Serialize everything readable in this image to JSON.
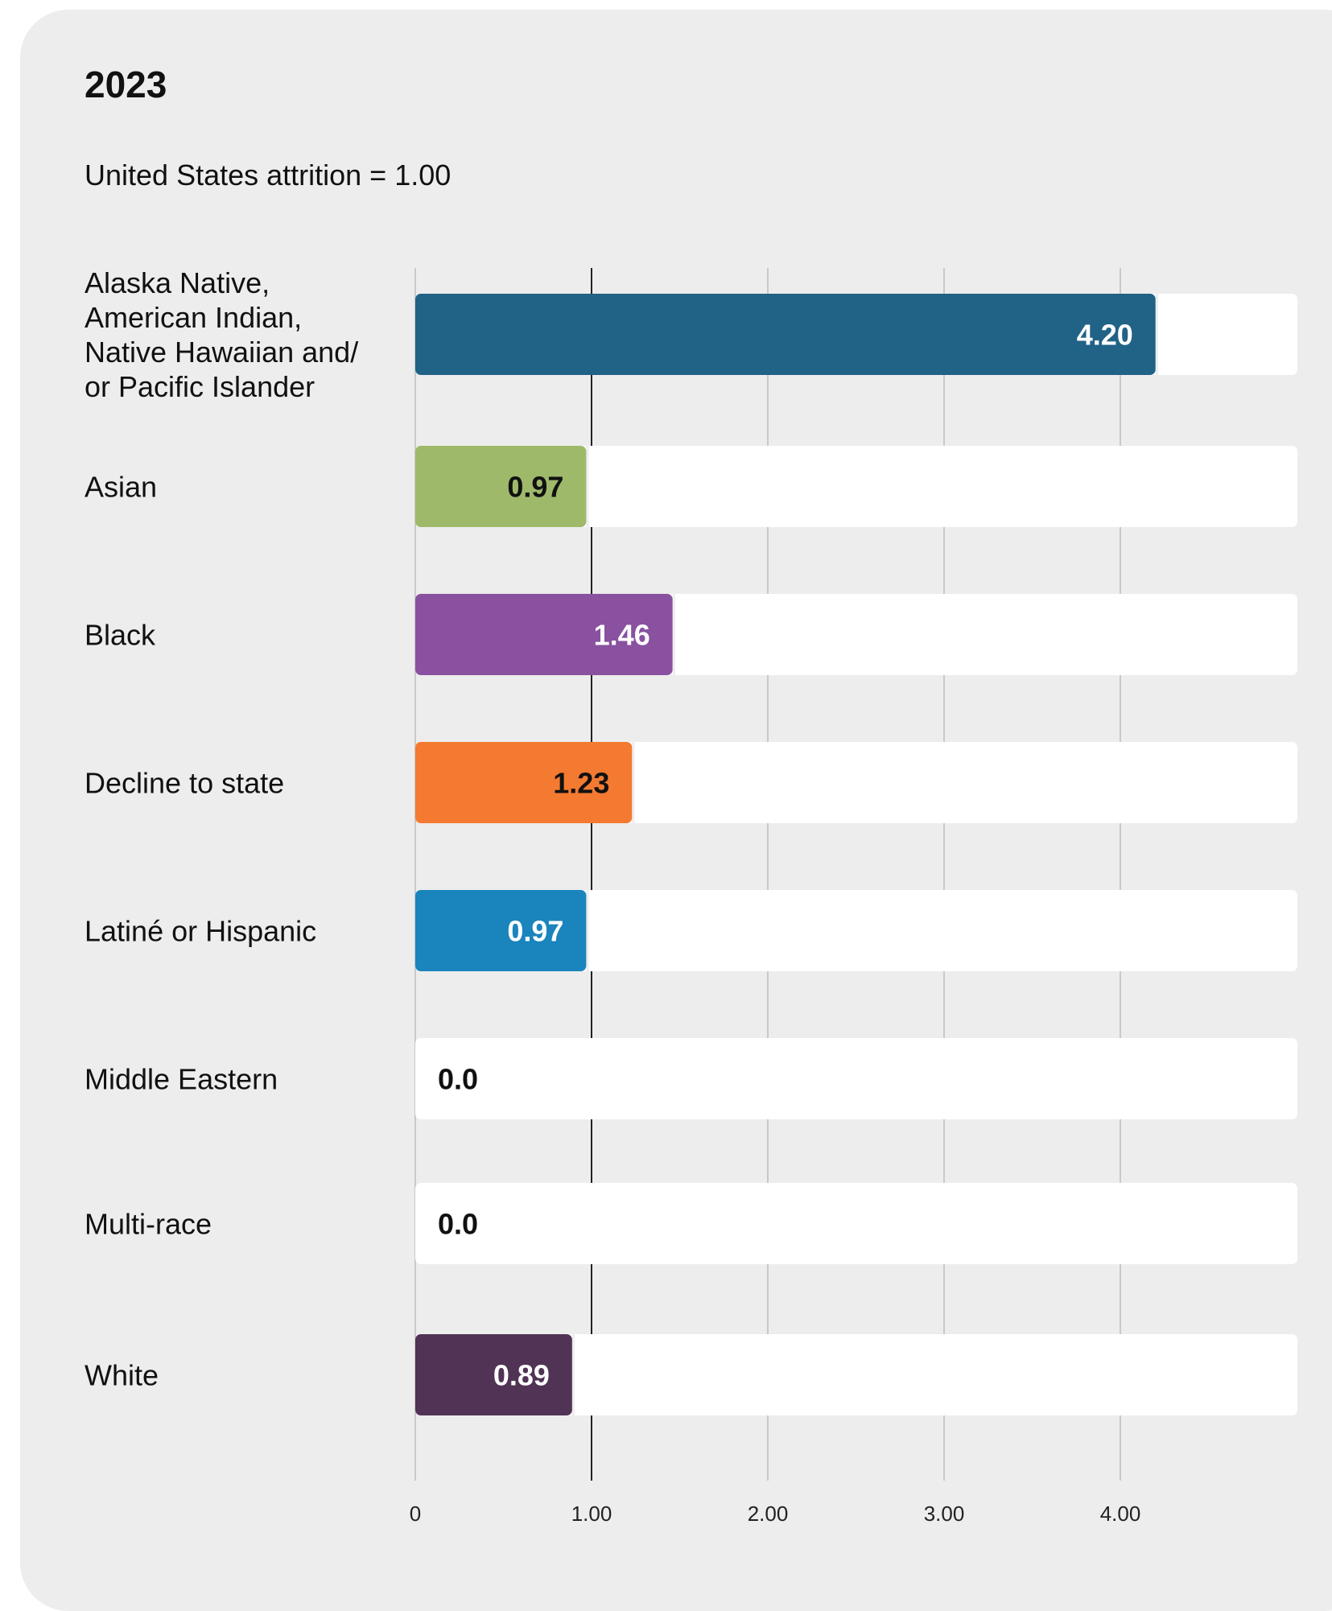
{
  "chart_data": {
    "type": "bar",
    "orientation": "horizontal",
    "title": "2023",
    "subtitle": "United States attrition = 1.00",
    "categories": [
      "Alaska Native, American Indian, Native Hawaiian and/ or Pacific Islander",
      "Asian",
      "Black",
      "Decline to state",
      "Latiné or Hispanic",
      "Middle Eastern",
      "Multi-race",
      "White"
    ],
    "category_lines": [
      [
        "Alaska Native,",
        "American Indian,",
        "Native Hawaiian and/",
        "or Pacific Islander"
      ],
      [
        "Asian"
      ],
      [
        "Black"
      ],
      [
        "Decline to state"
      ],
      [
        "Latiné or Hispanic"
      ],
      [
        "Middle Eastern"
      ],
      [
        "Multi-race"
      ],
      [
        "White"
      ]
    ],
    "values": [
      4.2,
      0.97,
      1.46,
      1.23,
      0.97,
      0.0,
      0.0,
      0.89
    ],
    "value_labels": [
      "4.20",
      "0.97",
      "1.46",
      "1.23",
      "0.97",
      "0.0",
      "0.0",
      "0.89"
    ],
    "colors": [
      "#216287",
      "#9fb96b",
      "#8951a0",
      "#f47a31",
      "#1a84bd",
      "#ffffff",
      "#ffffff",
      "#513355"
    ],
    "label_colors": [
      "#ffffff",
      "#111111",
      "#ffffff",
      "#111111",
      "#ffffff",
      "#111111",
      "#111111",
      "#ffffff"
    ],
    "xlim": [
      0,
      5
    ],
    "xticks": [
      0,
      1,
      2,
      3,
      4
    ],
    "xtick_labels": [
      "0",
      "1.00",
      "2.00",
      "3.00",
      "4.00"
    ],
    "reference_value": 1.0,
    "grid": true,
    "track_color": "#ffffff"
  }
}
